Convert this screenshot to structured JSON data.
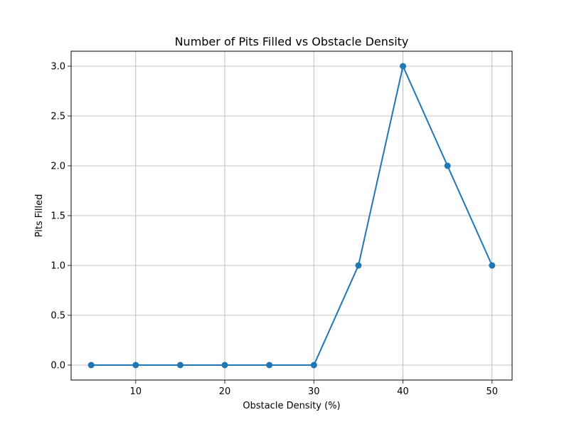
{
  "chart_data": {
    "type": "line",
    "title": "Number of Pits Filled vs Obstacle Density",
    "xlabel": "Obstacle Density (%)",
    "ylabel": "Pits Filled",
    "x": [
      5,
      10,
      15,
      20,
      25,
      30,
      35,
      40,
      45,
      50
    ],
    "series": [
      {
        "values": [
          0,
          0,
          0,
          0,
          0,
          0,
          1,
          3,
          2,
          1
        ],
        "color": "#1f77b4",
        "marker": "circle"
      }
    ],
    "xlim": [
      2.75,
      52.25
    ],
    "ylim": [
      -0.15,
      3.15
    ],
    "xticks": [
      10,
      20,
      30,
      40,
      50
    ],
    "xtick_labels": [
      "10",
      "20",
      "30",
      "40",
      "50"
    ],
    "yticks": [
      0,
      0.5,
      1,
      1.5,
      2,
      2.5,
      3
    ],
    "ytick_labels": [
      "0.0",
      "0.5",
      "1.0",
      "1.5",
      "2.0",
      "2.5",
      "3.0"
    ],
    "grid": true,
    "grid_color": "#b0b0b0"
  }
}
